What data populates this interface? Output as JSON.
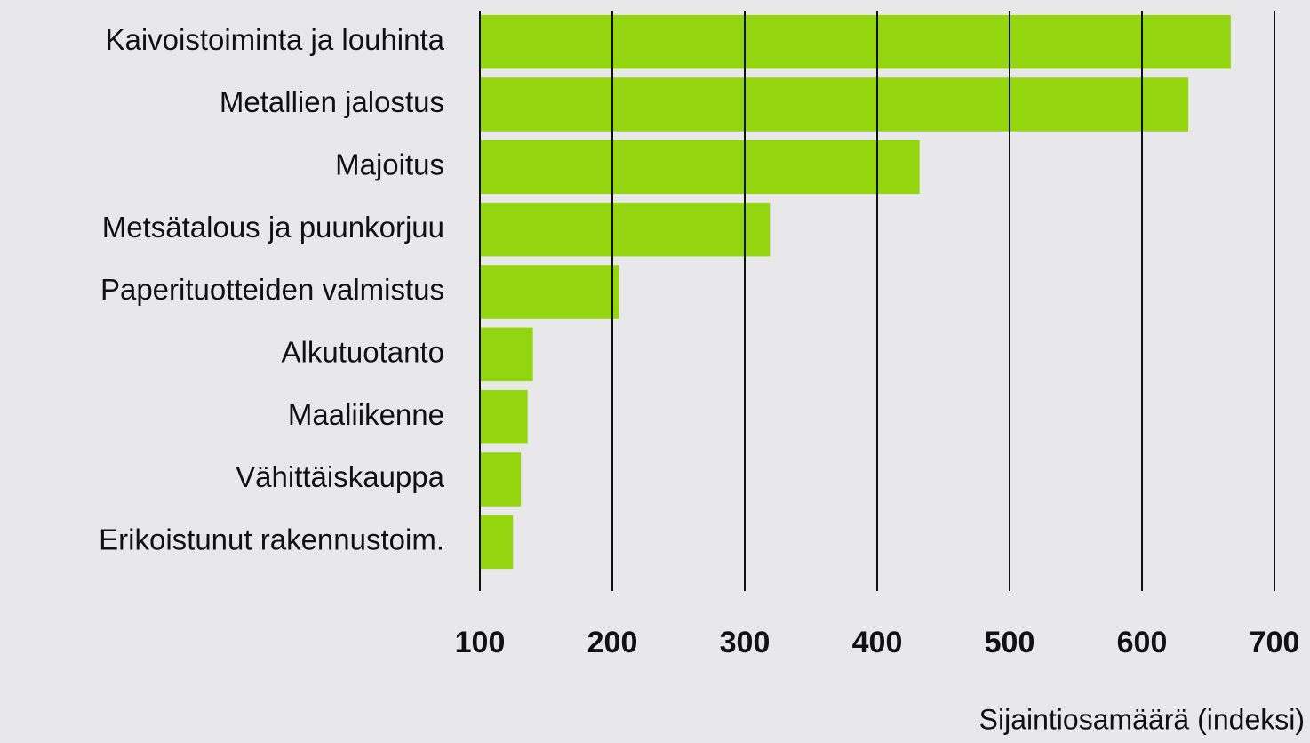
{
  "chart_data": {
    "type": "bar",
    "orientation": "horizontal",
    "categories": [
      "Kaivoistoiminta ja louhinta",
      "Metallien jalostus",
      "Majoitus",
      "Metsätalous ja puunkorjuu",
      "Paperituotteiden valmistus",
      "Alkutuotanto",
      "Maaliikenne",
      "Vähittäiskauppa",
      "Erikoistunut rakennustoim."
    ],
    "values": [
      667,
      635,
      432,
      319,
      205,
      140,
      136,
      131,
      125
    ],
    "color": "#93d60f",
    "xlabel": "Sijaintiosamäärä (indeksi)",
    "xlim": [
      100,
      700
    ],
    "xticks": [
      100,
      200,
      300,
      400,
      500,
      600,
      700
    ],
    "grid": true
  }
}
